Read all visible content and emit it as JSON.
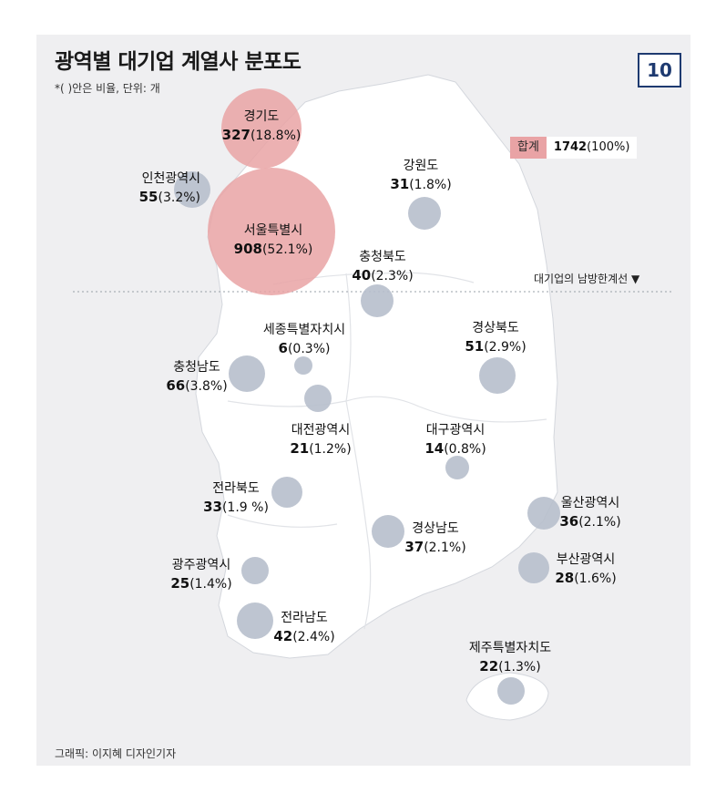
{
  "title": "광역별 대기업 계열사 분포도",
  "note": "*( )안은 비율, 단위: 개",
  "page_number": "10",
  "total": {
    "label": "합계",
    "value": "1742",
    "pct": "(100%)"
  },
  "boundary_label": "대기업의 남방한계선 ▼",
  "credit": "그래픽: 이지혜 디자인기자",
  "colors": {
    "highlight": "#e9a3a5",
    "bubble": "#b7bfcc",
    "land": "#ffffff",
    "background": "#efeff1",
    "border": "#1e3a70"
  },
  "regions": [
    {
      "name": "경기도",
      "value": "327",
      "pct": "(18.8%)",
      "count": 327
    },
    {
      "name": "서울특별시",
      "value": "908",
      "pct": "(52.1%)",
      "count": 908
    },
    {
      "name": "인천광역시",
      "value": "55",
      "pct": "(3.2%)",
      "count": 55
    },
    {
      "name": "강원도",
      "value": "31",
      "pct": "(1.8%)",
      "count": 31
    },
    {
      "name": "충청북도",
      "value": "40",
      "pct": "(2.3%)",
      "count": 40
    },
    {
      "name": "세종특별자치시",
      "value": "6",
      "pct": "(0.3%)",
      "count": 6
    },
    {
      "name": "경상북도",
      "value": "51",
      "pct": "(2.9%)",
      "count": 51
    },
    {
      "name": "충청남도",
      "value": "66",
      "pct": "(3.8%)",
      "count": 66
    },
    {
      "name": "대전광역시",
      "value": "21",
      "pct": "(1.2%)",
      "count": 21
    },
    {
      "name": "대구광역시",
      "value": "14",
      "pct": "(0.8%)",
      "count": 14
    },
    {
      "name": "전라북도",
      "value": "33",
      "pct": "(1.9 %)",
      "count": 33
    },
    {
      "name": "울산광역시",
      "value": "36",
      "pct": "(2.1%)",
      "count": 36
    },
    {
      "name": "경상남도",
      "value": "37",
      "pct": "(2.1%)",
      "count": 37
    },
    {
      "name": "광주광역시",
      "value": "25",
      "pct": "(1.4%)",
      "count": 25
    },
    {
      "name": "부산광역시",
      "value": "28",
      "pct": "(1.6%)",
      "count": 28
    },
    {
      "name": "전라남도",
      "value": "42",
      "pct": "(2.4%)",
      "count": 42
    },
    {
      "name": "제주특별자치도",
      "value": "22",
      "pct": "(1.3%)",
      "count": 22
    }
  ]
}
